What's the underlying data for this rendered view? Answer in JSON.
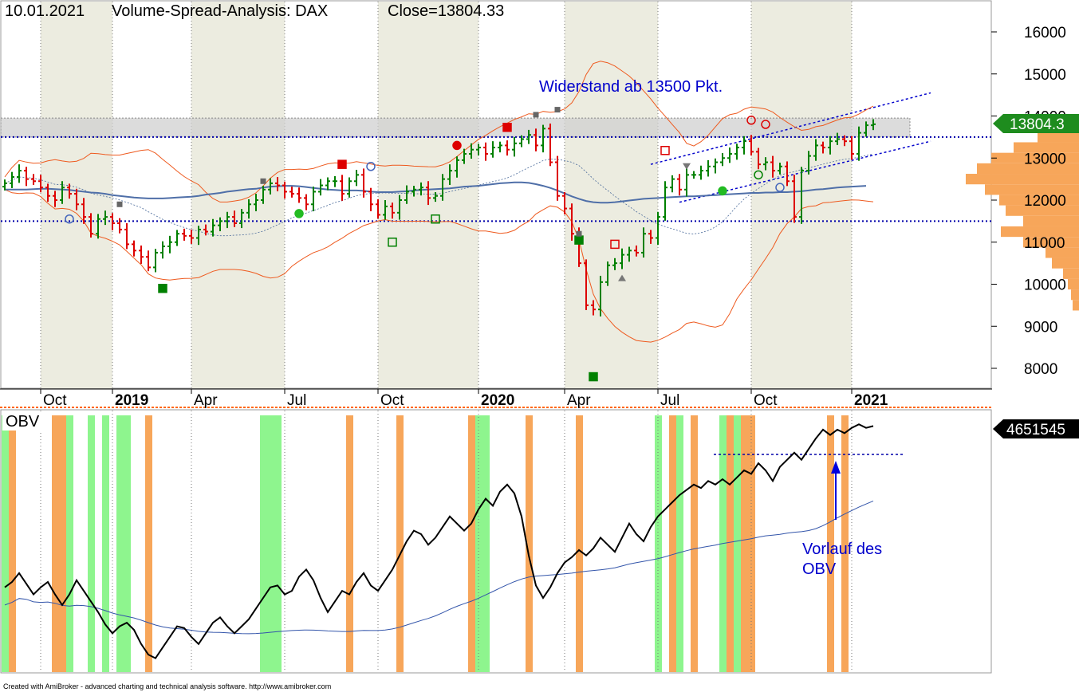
{
  "header": {
    "date": "10.01.2021",
    "title": "Volume-Spread-Analysis: DAX",
    "close_label": "Close=13804.33"
  },
  "footer": "Created with AmiBroker - advanced charting and technical analysis software. http://www.amibroker.com",
  "colors": {
    "up_bar": "#008000",
    "down_bar": "#dd0000",
    "bollinger": "#ee5a1f",
    "moving_average": "#4f6fa8",
    "support_line": "#0000aa",
    "obv_line": "#000000",
    "obv_ma": "#3355aa",
    "green_band": "#8ef58e",
    "orange_band": "#f7a65a",
    "volume_profile": "#f7a65a",
    "last_price_tag": "#1e8c1e",
    "obv_tag": "#000000"
  },
  "chart_data": [
    {
      "type": "candlestick",
      "name": "price",
      "x_axis": {
        "tick_labels": [
          "Oct",
          "2019",
          "Apr",
          "Jul",
          "Oct",
          "2020",
          "Apr",
          "Jul",
          "Oct",
          "2021"
        ],
        "bold_labels": [
          "2019",
          "2020",
          "2021"
        ],
        "tick_positions_week": [
          5,
          15,
          26,
          39,
          52,
          66,
          78,
          91,
          104,
          118
        ]
      },
      "y_axis": {
        "ticks": [
          8000,
          9000,
          10000,
          11000,
          12000,
          13000,
          14000,
          15000,
          16000
        ],
        "range": [
          7500,
          16600
        ]
      },
      "last_price": "13804.3",
      "resistance_zone": [
        13500,
        13950
      ],
      "horizontal_lines": [
        13500,
        11500
      ],
      "annotation": "Widerstand ab 13500 Pkt.",
      "closes": [
        12400,
        12550,
        12700,
        12500,
        12450,
        12300,
        12100,
        12000,
        12300,
        12150,
        11900,
        11600,
        11200,
        11550,
        11600,
        11450,
        11300,
        10950,
        10800,
        10650,
        10400,
        10750,
        10900,
        11000,
        11200,
        11150,
        11100,
        11300,
        11250,
        11400,
        11500,
        11600,
        11450,
        11700,
        11900,
        12000,
        12250,
        12400,
        12350,
        12200,
        12150,
        12050,
        11900,
        12200,
        12350,
        12450,
        12450,
        12150,
        12450,
        12600,
        12200,
        11900,
        11650,
        11850,
        11700,
        12000,
        12200,
        12250,
        12300,
        12050,
        12100,
        12500,
        12700,
        12950,
        13100,
        13200,
        13250,
        13100,
        13250,
        13300,
        13200,
        13350,
        13450,
        13550,
        13300,
        13700,
        12900,
        12100,
        11800,
        11200,
        10500,
        9500,
        9400,
        10050,
        10450,
        10500,
        10700,
        10800,
        10750,
        11200,
        11100,
        11600,
        12300,
        12500,
        12250,
        12600,
        12600,
        12700,
        12800,
        12900,
        13000,
        13100,
        13250,
        13400,
        13150,
        12850,
        12900,
        12700,
        12800,
        12450,
        11600,
        12700,
        13050,
        13300,
        13250,
        13400,
        13450,
        13400,
        13100,
        13600,
        13780,
        13804
      ],
      "moving_average": [
        12250,
        12250,
        12250,
        12250,
        12260,
        12270,
        12270,
        12260,
        12250,
        12240,
        12220,
        12200,
        12180,
        12170,
        12150,
        12120,
        12100,
        12080,
        12060,
        12050,
        12040,
        12040,
        12040,
        12050,
        12060,
        12070,
        12080,
        12100,
        12130,
        12150,
        12170,
        12200,
        12220,
        12240,
        12260,
        12270,
        12300,
        12320,
        12330,
        12340,
        12340,
        12330,
        12310,
        12290,
        12270,
        12250,
        12240,
        12230,
        12230,
        12230,
        12220,
        12200,
        12190,
        12190,
        12190,
        12200,
        12210,
        12230,
        12240,
        12250,
        12260,
        12270,
        12280,
        12300,
        12320,
        12330,
        12340,
        12360,
        12380,
        12400,
        12410,
        12420,
        12420,
        12410,
        12380,
        12340,
        12290,
        12230,
        12160,
        12090,
        12030,
        11980,
        11950,
        11940,
        11940,
        11950,
        11970,
        11990,
        12010,
        12030,
        12040,
        12050,
        12060,
        12070,
        12080,
        12090,
        12090,
        12100,
        12110,
        12120,
        12130,
        12140,
        12150,
        12160,
        12170,
        12170,
        12180,
        12180,
        12190,
        12190,
        12200,
        12210,
        12230,
        12250,
        12260,
        12280,
        12300,
        12310,
        12320,
        12330,
        12340
      ]
    },
    {
      "type": "line",
      "name": "OBV",
      "label": "OBV",
      "last_value": "4651545",
      "annotation": "Vorlauf des OBV",
      "values": [
        0.42,
        0.45,
        0.5,
        0.44,
        0.38,
        0.42,
        0.45,
        0.38,
        0.32,
        0.38,
        0.46,
        0.4,
        0.34,
        0.28,
        0.21,
        0.16,
        0.2,
        0.22,
        0.18,
        0.1,
        0.04,
        0.02,
        0.08,
        0.14,
        0.2,
        0.19,
        0.14,
        0.1,
        0.16,
        0.22,
        0.25,
        0.2,
        0.16,
        0.2,
        0.24,
        0.3,
        0.36,
        0.42,
        0.43,
        0.38,
        0.4,
        0.48,
        0.52,
        0.46,
        0.36,
        0.28,
        0.34,
        0.4,
        0.38,
        0.45,
        0.5,
        0.43,
        0.4,
        0.46,
        0.52,
        0.6,
        0.68,
        0.74,
        0.72,
        0.66,
        0.7,
        0.76,
        0.82,
        0.78,
        0.74,
        0.78,
        0.86,
        0.92,
        0.88,
        0.96,
        1.0,
        0.95,
        0.82,
        0.6,
        0.43,
        0.36,
        0.42,
        0.5,
        0.56,
        0.59,
        0.63,
        0.6,
        0.64,
        0.7,
        0.66,
        0.62,
        0.7,
        0.78,
        0.72,
        0.68,
        0.76,
        0.82,
        0.86,
        0.9,
        0.94,
        0.97,
        1.0,
        0.98,
        1.02,
        1.0,
        1.03,
        1.0,
        1.04,
        1.08,
        1.06,
        1.12,
        1.08,
        1.02,
        1.1,
        1.14,
        1.18,
        1.14,
        1.2,
        1.26,
        1.31,
        1.28,
        1.31,
        1.29,
        1.32,
        1.34,
        1.32,
        1.33
      ],
      "green_bands_week": [
        0,
        9,
        12,
        14,
        16,
        17,
        36,
        37,
        38,
        66,
        67,
        91,
        94,
        100,
        102
      ],
      "orange_bands_week": [
        1,
        7,
        8,
        20,
        48,
        55,
        65,
        73,
        80,
        93,
        96,
        101,
        103,
        104,
        115,
        117
      ]
    }
  ]
}
